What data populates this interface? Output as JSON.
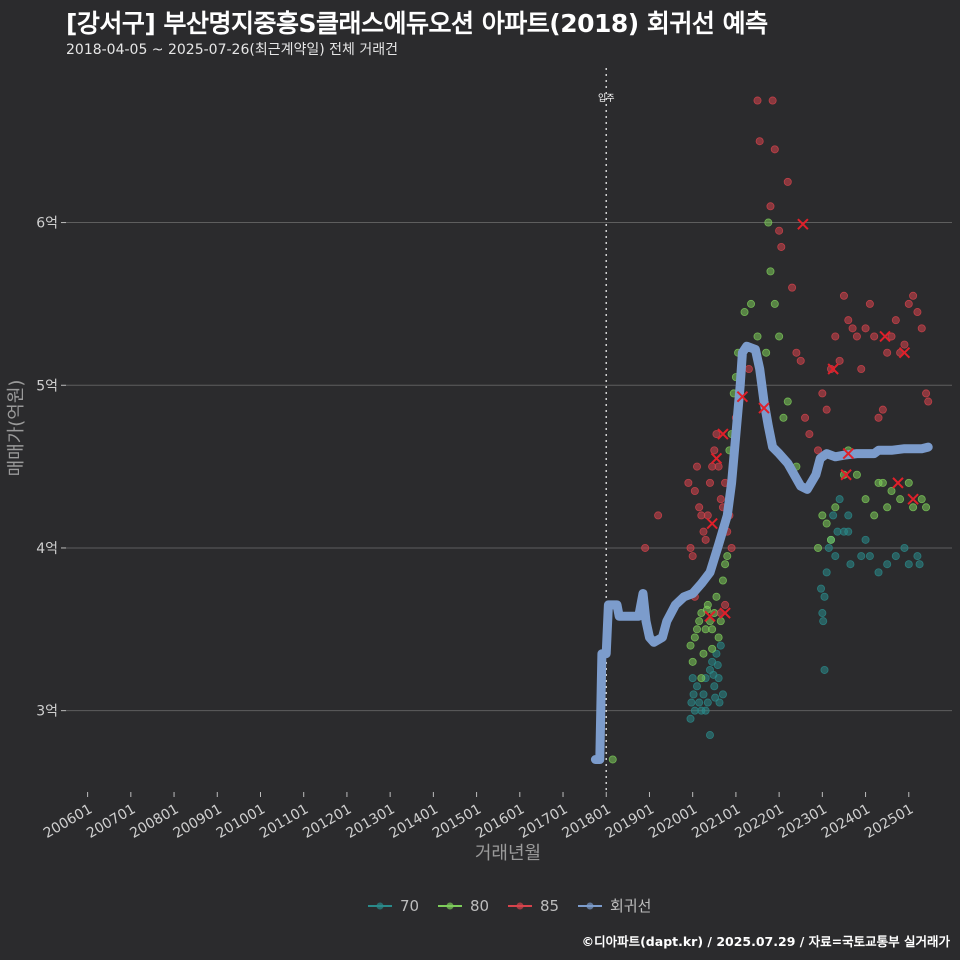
{
  "header": {
    "title": "[강서구] 부산명지중흥S클래스에듀오션 아파트(2018) 회귀선 예측",
    "subtitle": "2018-04-05 ~ 2025-07-26(최근계약일) 전체 거래건"
  },
  "caption": "©디아파트(dapt.kr) / 2025.07.29 / 자료=국토교통부 실거래가",
  "colors": {
    "background": "#2b2b2d",
    "grid": "#5e5e5e",
    "s70": "#2a8a8a",
    "s80": "#7dcc5a",
    "s85": "#d6434c",
    "regression": "#7c9ccc",
    "cross": "#e0202a"
  },
  "chart_data": {
    "type": "scatter",
    "xlabel": "거래년월",
    "ylabel": "매매가(억원)",
    "xlim": [
      2005.5,
      2026.0
    ],
    "ylim": [
      2.5,
      6.95
    ],
    "x_ticks": [
      "200601",
      "200701",
      "200801",
      "200901",
      "201001",
      "201101",
      "201201",
      "201301",
      "201401",
      "201501",
      "201601",
      "201701",
      "201801",
      "201901",
      "202001",
      "202101",
      "202201",
      "202301",
      "202401",
      "202501"
    ],
    "y_ticks": [
      {
        "value": 3,
        "label": "3억"
      },
      {
        "value": 4,
        "label": "4억"
      },
      {
        "value": 5,
        "label": "5억"
      },
      {
        "value": 6,
        "label": "6억"
      }
    ],
    "vline": {
      "x": 2018.0,
      "label": "입주"
    },
    "grid": "horizontal-major",
    "legend_position": "bottom",
    "series": [
      {
        "name": "70",
        "color": "#2a8a8a",
        "points": [
          [
            2019.95,
            2.95
          ],
          [
            2019.97,
            3.05
          ],
          [
            2020.0,
            3.2
          ],
          [
            2020.02,
            3.1
          ],
          [
            2020.05,
            3.0
          ],
          [
            2020.1,
            3.15
          ],
          [
            2020.15,
            3.05
          ],
          [
            2020.2,
            3.0
          ],
          [
            2020.25,
            3.1
          ],
          [
            2020.3,
            3.2
          ],
          [
            2020.35,
            3.05
          ],
          [
            2020.4,
            2.85
          ],
          [
            2020.4,
            3.25
          ],
          [
            2020.45,
            3.3
          ],
          [
            2020.5,
            3.15
          ],
          [
            2020.55,
            3.35
          ],
          [
            2020.6,
            3.2
          ],
          [
            2020.62,
            3.05
          ],
          [
            2020.65,
            3.4
          ],
          [
            2020.7,
            3.1
          ],
          [
            2020.3,
            3.0
          ],
          [
            2020.48,
            3.22
          ],
          [
            2020.58,
            3.28
          ],
          [
            2020.52,
            3.08
          ],
          [
            2022.97,
            3.75
          ],
          [
            2023.0,
            3.6
          ],
          [
            2023.02,
            3.55
          ],
          [
            2023.05,
            3.7
          ],
          [
            2023.1,
            3.85
          ],
          [
            2023.15,
            4.0
          ],
          [
            2023.2,
            4.05
          ],
          [
            2023.25,
            4.2
          ],
          [
            2023.3,
            3.95
          ],
          [
            2023.35,
            4.1
          ],
          [
            2023.4,
            4.3
          ],
          [
            2023.5,
            4.1
          ],
          [
            2023.6,
            4.1
          ],
          [
            2023.65,
            3.9
          ],
          [
            2023.9,
            3.95
          ],
          [
            2024.0,
            4.05
          ],
          [
            2024.1,
            3.95
          ],
          [
            2024.3,
            3.85
          ],
          [
            2024.5,
            3.9
          ],
          [
            2024.7,
            3.95
          ],
          [
            2024.9,
            4.0
          ],
          [
            2025.0,
            3.9
          ],
          [
            2025.2,
            3.95
          ],
          [
            2025.25,
            3.9
          ],
          [
            2023.05,
            3.25
          ],
          [
            2023.6,
            4.2
          ]
        ]
      },
      {
        "name": "80",
        "color": "#7dcc5a",
        "points": [
          [
            2018.15,
            2.7
          ],
          [
            2019.95,
            3.4
          ],
          [
            2020.0,
            3.3
          ],
          [
            2020.05,
            3.45
          ],
          [
            2020.1,
            3.5
          ],
          [
            2020.15,
            3.55
          ],
          [
            2020.2,
            3.6
          ],
          [
            2020.25,
            3.35
          ],
          [
            2020.3,
            3.5
          ],
          [
            2020.35,
            3.65
          ],
          [
            2020.4,
            3.55
          ],
          [
            2020.45,
            3.5
          ],
          [
            2020.5,
            3.6
          ],
          [
            2020.55,
            3.7
          ],
          [
            2020.6,
            3.45
          ],
          [
            2020.65,
            3.55
          ],
          [
            2020.7,
            3.8
          ],
          [
            2020.75,
            3.9
          ],
          [
            2020.8,
            3.95
          ],
          [
            2020.85,
            4.6
          ],
          [
            2020.9,
            4.7
          ],
          [
            2020.95,
            4.95
          ],
          [
            2021.0,
            5.05
          ],
          [
            2021.05,
            5.2
          ],
          [
            2021.2,
            5.45
          ],
          [
            2021.35,
            5.5
          ],
          [
            2021.5,
            5.3
          ],
          [
            2021.6,
            5.0
          ],
          [
            2021.7,
            5.2
          ],
          [
            2021.8,
            5.7
          ],
          [
            2021.9,
            5.5
          ],
          [
            2022.0,
            5.3
          ],
          [
            2022.1,
            4.8
          ],
          [
            2022.2,
            4.9
          ],
          [
            2022.4,
            4.5
          ],
          [
            2022.9,
            4.0
          ],
          [
            2023.0,
            4.2
          ],
          [
            2023.1,
            4.15
          ],
          [
            2023.2,
            4.05
          ],
          [
            2023.3,
            4.25
          ],
          [
            2023.5,
            4.45
          ],
          [
            2023.6,
            4.6
          ],
          [
            2023.8,
            4.45
          ],
          [
            2024.0,
            4.3
          ],
          [
            2024.2,
            4.2
          ],
          [
            2024.3,
            4.4
          ],
          [
            2024.4,
            4.4
          ],
          [
            2024.5,
            4.25
          ],
          [
            2024.6,
            4.35
          ],
          [
            2024.8,
            4.3
          ],
          [
            2025.0,
            4.4
          ],
          [
            2025.1,
            4.25
          ],
          [
            2025.3,
            4.3
          ],
          [
            2025.4,
            4.25
          ],
          [
            2020.2,
            3.2
          ],
          [
            2020.45,
            3.38
          ],
          [
            2020.33,
            3.62
          ],
          [
            2021.75,
            6.0
          ]
        ]
      },
      {
        "name": "85",
        "color": "#d6434c",
        "points": [
          [
            2018.9,
            4.0
          ],
          [
            2019.2,
            4.2
          ],
          [
            2019.9,
            4.4
          ],
          [
            2019.95,
            4.0
          ],
          [
            2020.0,
            3.95
          ],
          [
            2020.05,
            4.35
          ],
          [
            2020.1,
            4.5
          ],
          [
            2020.15,
            4.25
          ],
          [
            2020.2,
            4.2
          ],
          [
            2020.25,
            4.1
          ],
          [
            2020.3,
            4.05
          ],
          [
            2020.35,
            4.2
          ],
          [
            2020.4,
            4.4
          ],
          [
            2020.45,
            4.5
          ],
          [
            2020.5,
            4.6
          ],
          [
            2020.55,
            4.7
          ],
          [
            2020.6,
            4.5
          ],
          [
            2020.65,
            4.3
          ],
          [
            2020.7,
            4.25
          ],
          [
            2020.75,
            4.4
          ],
          [
            2020.8,
            4.1
          ],
          [
            2020.85,
            4.2
          ],
          [
            2020.9,
            4.0
          ],
          [
            2021.0,
            4.8
          ],
          [
            2021.1,
            5.0
          ],
          [
            2021.3,
            5.1
          ],
          [
            2021.5,
            6.75
          ],
          [
            2021.55,
            6.5
          ],
          [
            2021.85,
            6.75
          ],
          [
            2021.8,
            6.1
          ],
          [
            2021.9,
            6.45
          ],
          [
            2022.0,
            5.95
          ],
          [
            2022.05,
            5.85
          ],
          [
            2022.2,
            6.25
          ],
          [
            2022.3,
            5.6
          ],
          [
            2022.4,
            5.2
          ],
          [
            2022.5,
            5.15
          ],
          [
            2022.6,
            4.8
          ],
          [
            2022.7,
            4.7
          ],
          [
            2022.9,
            4.6
          ],
          [
            2023.0,
            4.95
          ],
          [
            2023.1,
            4.85
          ],
          [
            2023.2,
            5.1
          ],
          [
            2023.3,
            5.3
          ],
          [
            2023.4,
            5.15
          ],
          [
            2023.5,
            5.55
          ],
          [
            2023.6,
            5.4
          ],
          [
            2023.7,
            5.35
          ],
          [
            2023.8,
            5.3
          ],
          [
            2023.9,
            5.1
          ],
          [
            2024.0,
            5.35
          ],
          [
            2024.1,
            5.5
          ],
          [
            2024.2,
            5.3
          ],
          [
            2024.3,
            4.8
          ],
          [
            2024.4,
            4.85
          ],
          [
            2024.5,
            5.2
          ],
          [
            2024.6,
            5.3
          ],
          [
            2024.7,
            5.4
          ],
          [
            2024.8,
            5.2
          ],
          [
            2024.9,
            5.25
          ],
          [
            2025.0,
            5.5
          ],
          [
            2025.1,
            5.55
          ],
          [
            2025.2,
            5.45
          ],
          [
            2025.3,
            5.35
          ],
          [
            2025.4,
            4.95
          ],
          [
            2025.45,
            4.9
          ],
          [
            2020.05,
            3.7
          ],
          [
            2020.65,
            3.6
          ],
          [
            2020.75,
            3.65
          ]
        ]
      },
      {
        "name": "회귀선",
        "color": "#7c9ccc",
        "line": [
          [
            2017.75,
            2.7
          ],
          [
            2017.85,
            2.7
          ],
          [
            2017.9,
            3.35
          ],
          [
            2018.0,
            3.35
          ],
          [
            2018.05,
            3.65
          ],
          [
            2018.25,
            3.65
          ],
          [
            2018.3,
            3.58
          ],
          [
            2018.6,
            3.58
          ],
          [
            2018.75,
            3.58
          ],
          [
            2018.85,
            3.72
          ],
          [
            2018.92,
            3.55
          ],
          [
            2019.0,
            3.45
          ],
          [
            2019.1,
            3.42
          ],
          [
            2019.3,
            3.45
          ],
          [
            2019.4,
            3.55
          ],
          [
            2019.6,
            3.65
          ],
          [
            2019.8,
            3.7
          ],
          [
            2020.0,
            3.72
          ],
          [
            2020.2,
            3.78
          ],
          [
            2020.4,
            3.85
          ],
          [
            2020.6,
            4.02
          ],
          [
            2020.8,
            4.2
          ],
          [
            2020.9,
            4.4
          ],
          [
            2021.0,
            4.7
          ],
          [
            2021.1,
            5.0
          ],
          [
            2021.15,
            5.2
          ],
          [
            2021.25,
            5.24
          ],
          [
            2021.45,
            5.22
          ],
          [
            2021.55,
            5.1
          ],
          [
            2021.65,
            4.9
          ],
          [
            2021.75,
            4.75
          ],
          [
            2021.85,
            4.62
          ],
          [
            2022.0,
            4.58
          ],
          [
            2022.2,
            4.52
          ],
          [
            2022.35,
            4.45
          ],
          [
            2022.5,
            4.38
          ],
          [
            2022.65,
            4.36
          ],
          [
            2022.85,
            4.45
          ],
          [
            2022.95,
            4.55
          ],
          [
            2023.1,
            4.58
          ],
          [
            2023.3,
            4.56
          ],
          [
            2023.5,
            4.57
          ],
          [
            2023.8,
            4.58
          ],
          [
            2024.0,
            4.58
          ],
          [
            2024.2,
            4.58
          ],
          [
            2024.3,
            4.6
          ],
          [
            2024.6,
            4.6
          ],
          [
            2024.9,
            4.61
          ],
          [
            2025.1,
            4.61
          ],
          [
            2025.3,
            4.61
          ],
          [
            2025.45,
            4.62
          ]
        ]
      }
    ],
    "crosses": [
      [
        2020.55,
        4.55
      ],
      [
        2020.7,
        4.7
      ],
      [
        2021.15,
        4.93
      ],
      [
        2020.45,
        4.15
      ],
      [
        2020.4,
        3.58
      ],
      [
        2020.75,
        3.6
      ],
      [
        2022.55,
        5.99
      ],
      [
        2021.65,
        4.86
      ],
      [
        2023.25,
        5.1
      ],
      [
        2023.55,
        4.45
      ],
      [
        2023.6,
        4.58
      ],
      [
        2024.45,
        5.3
      ],
      [
        2024.9,
        5.2
      ],
      [
        2024.75,
        4.4
      ],
      [
        2025.1,
        4.3
      ]
    ],
    "legend": [
      {
        "label": "70",
        "color": "#2a8a8a"
      },
      {
        "label": "80",
        "color": "#7dcc5a"
      },
      {
        "label": "85",
        "color": "#d6434c"
      },
      {
        "label": "회귀선",
        "color": "#7c9ccc"
      }
    ]
  }
}
